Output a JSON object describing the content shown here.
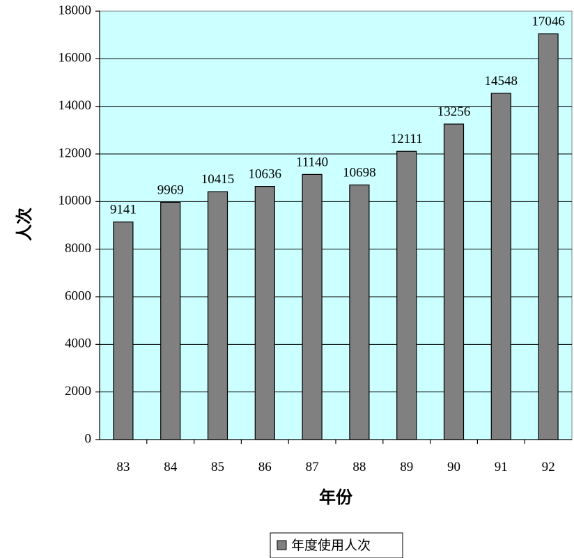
{
  "chart_data": {
    "type": "bar",
    "title": "",
    "xlabel": "年份",
    "ylabel": "人次",
    "categories": [
      "83",
      "84",
      "85",
      "86",
      "87",
      "88",
      "89",
      "90",
      "91",
      "92"
    ],
    "series": [
      {
        "name": "年度使用人次",
        "values": [
          9141,
          9969,
          10415,
          10636,
          11140,
          10698,
          12111,
          13256,
          14548,
          17046
        ],
        "color": "#808080"
      }
    ],
    "data_labels": [
      "9141",
      "9969",
      "10415",
      "10636",
      "11140",
      "10698",
      "12111",
      "13256",
      "14548",
      "17046"
    ],
    "yticks": [
      "0",
      "2000",
      "4000",
      "6000",
      "8000",
      "10000",
      "12000",
      "14000",
      "16000",
      "18000"
    ],
    "ylim": [
      0,
      18000
    ],
    "grid": true,
    "plot_background": "#ccffff",
    "legend_position": "bottom"
  }
}
